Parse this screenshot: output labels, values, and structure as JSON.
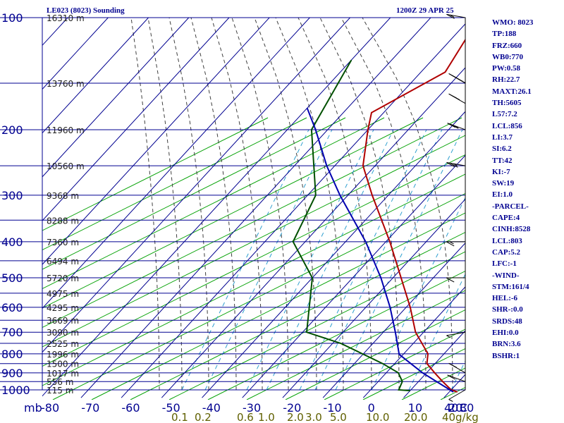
{
  "header": {
    "station_label": "LE023 (8023) Sounding",
    "valid_time": "1200Z 29 APR 25"
  },
  "indices": [
    "WMO: 8023",
    "TP:188",
    "FRZ:660",
    "WB0:770",
    "PW:0.58",
    "RH:22.7",
    "MAXT:26.1",
    "TH:5605",
    "L57:7.2",
    "LCL:856",
    "LI:3.7",
    "SI:6.2",
    "TT:42",
    "KI:-7",
    "SW:19",
    "EI:1.0",
    "-PARCEL-",
    "CAPE:4",
    "CINH:8528",
    "LCL:803",
    "CAP:5.2",
    "LFC:-1",
    "-WIND-",
    "STM:161/4",
    "HEL:-6",
    "SHR-:0.0",
    "SRDS:48",
    "EHI:0.0",
    "BRN:3.6",
    "BSHR:1"
  ],
  "colors": {
    "grid": "#000090",
    "dry_adiabat": "#00a000",
    "moist_adiabat": "#404040",
    "mixing_ratio": "#30a0d0",
    "temperature": "#b00000",
    "dewpoint": "#005000",
    "parcel": "#0000b0",
    "label": "#000090",
    "mixing_label": "#606000"
  },
  "chart_data": {
    "type": "line",
    "title": "",
    "xlabel": "",
    "ylabel": "mb",
    "x_unit": "°C",
    "xlim": [
      -80,
      0
    ],
    "ylim": [
      1000,
      100
    ],
    "y_scale": "log",
    "skew": "temperature isotherms skewed to the right",
    "grid": true,
    "x_ticks": [
      "-80",
      "-70",
      "-60",
      "-50",
      "-40",
      "-30",
      "-20",
      "-10",
      "0",
      "10",
      "20",
      "30",
      "40",
      "C"
    ],
    "y_ticks": [
      {
        "p": 100,
        "label": "100",
        "height": "16310 m"
      },
      {
        "p": 150,
        "label": "",
        "height": "13760 m"
      },
      {
        "p": 200,
        "label": "200",
        "height": "11960 m"
      },
      {
        "p": 250,
        "label": "",
        "height": "10560 m"
      },
      {
        "p": 300,
        "label": "300",
        "height": "9368 m"
      },
      {
        "p": 350,
        "label": "",
        "height": "8288 m"
      },
      {
        "p": 400,
        "label": "400",
        "height": "7360 m"
      },
      {
        "p": 450,
        "label": "",
        "height": "6494 m"
      },
      {
        "p": 500,
        "label": "500",
        "height": "5720 m"
      },
      {
        "p": 550,
        "label": "",
        "height": "4975 m"
      },
      {
        "p": 600,
        "label": "600",
        "height": "4295 m"
      },
      {
        "p": 650,
        "label": "",
        "height": "3669 m"
      },
      {
        "p": 700,
        "label": "700",
        "height": "3090 m"
      },
      {
        "p": 750,
        "label": "",
        "height": "2525 m"
      },
      {
        "p": 800,
        "label": "800",
        "height": "1996 m"
      },
      {
        "p": 850,
        "label": "",
        "height": "1500 m"
      },
      {
        "p": 900,
        "label": "900",
        "height": "1017 m"
      },
      {
        "p": 950,
        "label": "",
        "height": "556 m"
      },
      {
        "p": 1000,
        "label": "1000",
        "height": "115 m"
      }
    ],
    "mixing_ratio_labels": [
      "0.1",
      "0.2",
      "0.6",
      "1.0",
      "2.0",
      "3.0",
      "5.0",
      "10.0",
      "20.0",
      "40",
      "g/kg"
    ],
    "series": [
      {
        "name": "Temperature",
        "points": [
          {
            "p": 1013,
            "t": 22.0
          },
          {
            "p": 1000,
            "t": 20.0
          },
          {
            "p": 950,
            "t": 16.0
          },
          {
            "p": 900,
            "t": 12.0
          },
          {
            "p": 850,
            "t": 8.0
          },
          {
            "p": 800,
            "t": 6.0
          },
          {
            "p": 700,
            "t": -2.0
          },
          {
            "p": 600,
            "t": -9.0
          },
          {
            "p": 500,
            "t": -18.0
          },
          {
            "p": 400,
            "t": -29.0
          },
          {
            "p": 300,
            "t": -44.0
          },
          {
            "p": 250,
            "t": -53.0
          },
          {
            "p": 200,
            "t": -60.0
          },
          {
            "p": 180,
            "t": -63.0
          },
          {
            "p": 140,
            "t": -54.0
          },
          {
            "p": 100,
            "t": -58.0
          }
        ]
      },
      {
        "name": "Dewpoint",
        "points": [
          {
            "p": 1005,
            "t": 10.0
          },
          {
            "p": 1000,
            "t": 7.0
          },
          {
            "p": 950,
            "t": 6.0
          },
          {
            "p": 900,
            "t": 3.0
          },
          {
            "p": 850,
            "t": -3.0
          },
          {
            "p": 750,
            "t": -18.0
          },
          {
            "p": 700,
            "t": -29.0
          },
          {
            "p": 500,
            "t": -40.0
          },
          {
            "p": 400,
            "t": -53.0
          },
          {
            "p": 300,
            "t": -58.0
          },
          {
            "p": 200,
            "t": -74.0
          },
          {
            "p": 130,
            "t": -80.0
          }
        ]
      },
      {
        "name": "Parcel",
        "points": [
          {
            "p": 1013,
            "t": 21.0
          },
          {
            "p": 900,
            "t": 9.0
          },
          {
            "p": 803,
            "t": -1.0
          },
          {
            "p": 700,
            "t": -7.0
          },
          {
            "p": 600,
            "t": -14.0
          },
          {
            "p": 500,
            "t": -23.0
          },
          {
            "p": 400,
            "t": -35.0
          },
          {
            "p": 300,
            "t": -52.0
          },
          {
            "p": 250,
            "t": -62.0
          },
          {
            "p": 200,
            "t": -73.0
          },
          {
            "p": 175,
            "t": -80.0
          }
        ]
      }
    ],
    "wind_barbs": [
      {
        "p": 1000,
        "dir": 240,
        "kt": 5
      },
      {
        "p": 950,
        "dir": 290,
        "kt": 10
      },
      {
        "p": 900,
        "dir": 300,
        "kt": 10
      },
      {
        "p": 700,
        "dir": 260,
        "kt": 5
      },
      {
        "p": 500,
        "dir": 270,
        "kt": 10
      },
      {
        "p": 400,
        "dir": 270,
        "kt": 15
      },
      {
        "p": 250,
        "dir": 280,
        "kt": 25
      },
      {
        "p": 200,
        "dir": 290,
        "kt": 25
      },
      {
        "p": 170,
        "dir": 300,
        "kt": 20
      },
      {
        "p": 150,
        "dir": 300,
        "kt": 40
      },
      {
        "p": 100,
        "dir": 280,
        "kt": 15
      }
    ]
  }
}
